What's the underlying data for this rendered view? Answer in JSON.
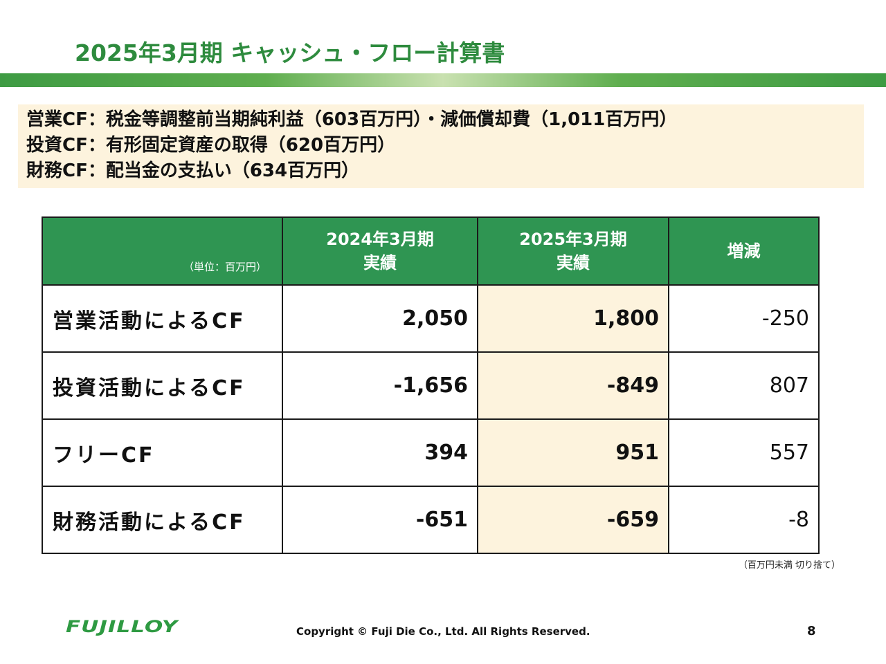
{
  "title": "2025年3月期 キャッシュ・フロー計算書",
  "summary": [
    "営業CF：税金等調整前当期純利益（603百万円）・減価償却費（1,011百万円）",
    "投資CF：有形固定資産の取得（620百万円）",
    "財務CF：配当金の支払い（634百万円）"
  ],
  "table": {
    "unit_label": "（単位：百万円）",
    "headers": [
      {
        "line1": "2024年3月期",
        "line2": "実績"
      },
      {
        "line1": "2025年3月期",
        "line2": "実績"
      },
      {
        "line1": "増減",
        "line2": ""
      }
    ],
    "rows": [
      {
        "label": "営業活動によるCF",
        "prev": "2,050",
        "curr": "1,800",
        "diff": "-250"
      },
      {
        "label": "投資活動によるCF",
        "prev": "-1,656",
        "curr": "-849",
        "diff": "807"
      },
      {
        "label": "フリーCF",
        "prev": "394",
        "curr": "951",
        "diff": "557"
      },
      {
        "label": "財務活動によるCF",
        "prev": "-651",
        "curr": "-659",
        "diff": "-8"
      }
    ],
    "note": "（百万円未満 切り捨て）"
  },
  "footer": {
    "logo": "FUJILLOY",
    "copyright": "Copyright © Fuji Die Co., Ltd. All Rights Reserved.",
    "page": "8"
  },
  "colors": {
    "brand_green": "#2e8b3e",
    "header_green": "#2f9552",
    "highlight_cream": "#fdf3dd"
  }
}
